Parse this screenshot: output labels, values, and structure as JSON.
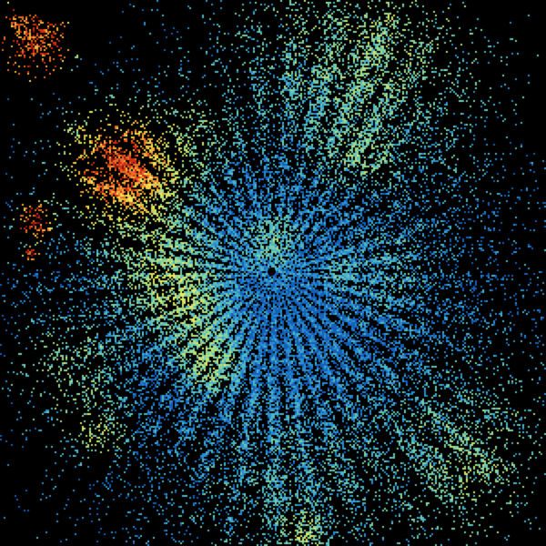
{
  "background": "#000000",
  "colormap": [
    "#1560b8",
    "#2b8fd0",
    "#4fb6c8",
    "#7cd0a8",
    "#b4e080",
    "#ecec5c",
    "#f4b43c",
    "#e8702a",
    "#d02c14",
    "#8c1010"
  ],
  "radar_site_marker": "#000000"
}
